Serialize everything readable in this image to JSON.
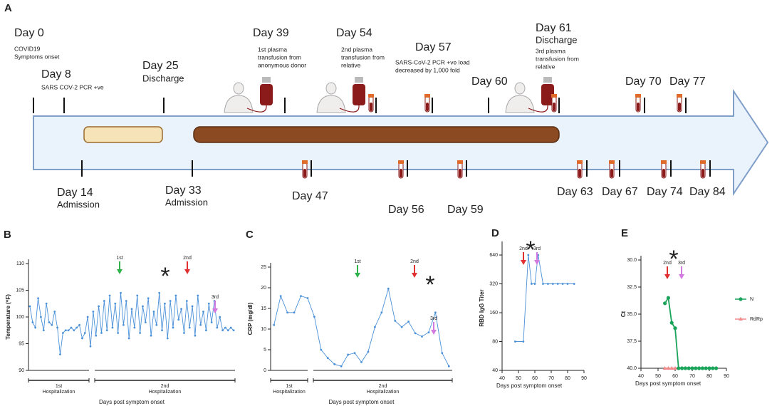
{
  "timeline": {
    "label": "A",
    "above": [
      {
        "day": "Day 0",
        "note": [
          "COVID19",
          "Symptoms onset"
        ]
      },
      {
        "day": "Day 8",
        "note": [
          "SARS COV-2 PCR +ve"
        ]
      },
      {
        "day": "Day 25",
        "subtitle": "Discharge"
      },
      {
        "day": "Day 39",
        "note": [
          "1st plasma",
          "transfusion from",
          "anonymous donor"
        ]
      },
      {
        "day": "Day 54",
        "note": [
          "2nd  plasma",
          "transfusion from",
          "relative"
        ]
      },
      {
        "day": "Day 57",
        "note": [
          "SARS-CoV-2 PCR +ve load",
          "decreased by 1,000 fold"
        ]
      },
      {
        "day": "Day 60"
      },
      {
        "day": "Day 61",
        "subtitle": "Discharge",
        "note": [
          "3rd plasma",
          "transfusion from",
          "relative"
        ]
      },
      {
        "day": "Day 70"
      },
      {
        "day": "Day 77"
      }
    ],
    "below": [
      {
        "day": "Day 14",
        "subtitle": "Admission"
      },
      {
        "day": "Day 33",
        "subtitle": "Admission"
      },
      {
        "day": "Day 47"
      },
      {
        "day": "Day 56"
      },
      {
        "day": "Day 59"
      },
      {
        "day": "Day 63"
      },
      {
        "day": "Day 67"
      },
      {
        "day": "Day 74"
      },
      {
        "day": "Day 84"
      }
    ]
  },
  "chart_data": [
    {
      "type": "line",
      "panel": "B",
      "y_label": "Temperature (⁰F)",
      "x_label": "Days post symptom onset",
      "color": "#4a90d9",
      "values": [
        102,
        99,
        98,
        103.5,
        100,
        97.5,
        102.5,
        99,
        98.5,
        101,
        98,
        93,
        97,
        97.5,
        97.5,
        98,
        97.5,
        98,
        98.5,
        96,
        97,
        100,
        94.5,
        101,
        96.5,
        102,
        97,
        103,
        97.5,
        104,
        98,
        102.5,
        97,
        104.5,
        98.5,
        103,
        96,
        101.5,
        98,
        104,
        97,
        102,
        99,
        103.5,
        96.5,
        101,
        98.5,
        104.5,
        97.5,
        102.5,
        96,
        103,
        98,
        104,
        99.5,
        101.5,
        97,
        103,
        98,
        102,
        96.5,
        104,
        98.5,
        101,
        97.5,
        102.5,
        99,
        103,
        98,
        100,
        97.5,
        98,
        97.5,
        98,
        97.5
      ],
      "ylim": [
        90,
        110
      ],
      "yticks": [
        90,
        95,
        100,
        105,
        110
      ],
      "groups": [
        [
          "1st",
          "Hospitalization"
        ],
        [
          "2nd",
          "Hospitalization"
        ]
      ],
      "annotations": [
        {
          "text": "1st",
          "color": "#2db34a"
        },
        {
          "text": "2nd",
          "color": "#e03030"
        },
        {
          "text": "3rd",
          "color": "#d27ae0"
        }
      ],
      "marker_text": "*",
      "marker_color": "#1f6fb5"
    },
    {
      "type": "line",
      "panel": "C",
      "y_label": "CRP (mg/dl)",
      "x_label": "Days post symptom onset",
      "color": "#4a90d9",
      "values": [
        11,
        18,
        14,
        14,
        18,
        17.5,
        13,
        5,
        3,
        1.5,
        1,
        3.8,
        4.2,
        2,
        4.5,
        10.5,
        14,
        19.8,
        12,
        10.5,
        11.8,
        9,
        8.2,
        9.2,
        14,
        4.2,
        1
      ],
      "ylim": [
        0,
        25
      ],
      "yticks": [
        0,
        5,
        10,
        15,
        20,
        25
      ],
      "groups": [
        [
          "1st",
          "Hospitalization"
        ],
        [
          "2nd",
          "Hospitalization"
        ]
      ],
      "annotations": [
        {
          "text": "1st",
          "color": "#2db34a"
        },
        {
          "text": "2nd",
          "color": "#e03030"
        },
        {
          "text": "3rd",
          "color": "#d27ae0"
        }
      ],
      "marker_text": "*",
      "marker_color": "#1f6fb5"
    },
    {
      "type": "line",
      "panel": "D",
      "y_label": "RBD IgG Titer",
      "x_label": "Days post symptom onset",
      "color": "#4a90d9",
      "x": [
        48,
        53,
        56,
        58,
        60,
        62,
        65,
        68,
        71,
        74,
        77,
        80,
        84
      ],
      "values": [
        80,
        80,
        640,
        320,
        320,
        640,
        320,
        320,
        320,
        320,
        320,
        320,
        320
      ],
      "log_y": true,
      "ylim": [
        40,
        800
      ],
      "yticks": [
        40,
        80,
        160,
        320,
        640
      ],
      "xlim": [
        40,
        90
      ],
      "xticks": [
        40,
        50,
        60,
        70,
        80,
        90
      ],
      "annotations": [
        {
          "text": "2nd",
          "color": "#e03030"
        },
        {
          "text": "3rd",
          "color": "#d27ae0"
        }
      ],
      "marker_text": "*",
      "marker_color": "#1f6fb5"
    },
    {
      "type": "line",
      "panel": "E",
      "y_label": "Ct",
      "x_label": "Days post symptom onset",
      "x": [
        54,
        56,
        58,
        60,
        62,
        64,
        66,
        68,
        70,
        72,
        74,
        76,
        78,
        80,
        82,
        84
      ],
      "series": [
        {
          "name": "N",
          "color": "#1aa35a",
          "marker": "circle",
          "values": [
            34,
            33.5,
            35.8,
            36.3,
            40,
            40,
            40,
            40,
            40,
            40,
            40,
            40,
            40,
            40,
            40,
            40
          ]
        },
        {
          "name": "RdRp",
          "color": "#f08a8a",
          "marker": "triangle",
          "values": [
            40,
            40,
            40,
            40,
            null,
            null,
            null,
            null,
            null,
            null,
            null,
            null,
            null,
            null,
            null,
            null
          ]
        }
      ],
      "y_reversed": true,
      "ylim": [
        30,
        40
      ],
      "yticks": [
        {
          "value": 30,
          "label": "30.0"
        },
        {
          "value": 32.5,
          "label": "32.5"
        },
        {
          "value": 35,
          "label": "35.0"
        },
        {
          "value": 37.5,
          "label": "37.5"
        },
        {
          "value": 40,
          "label": "40.0"
        }
      ],
      "xlim": [
        40,
        90
      ],
      "xticks": [
        40,
        50,
        60,
        70,
        80,
        90
      ],
      "annotations": [
        {
          "text": "2nd",
          "color": "#e03030"
        },
        {
          "text": "3rd",
          "color": "#d27ae0"
        }
      ],
      "marker_text": "*",
      "marker_color": "#1f6fb5",
      "legend": "right"
    }
  ]
}
